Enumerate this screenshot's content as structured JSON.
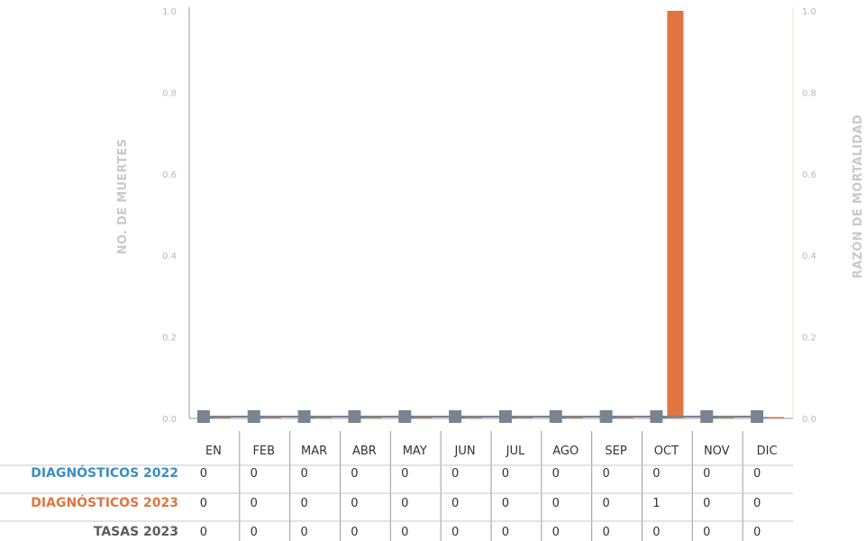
{
  "chart_data": {
    "type": "bar",
    "categories": [
      "EN",
      "FEB",
      "MAR",
      "ABR",
      "MAY",
      "JUN",
      "JUL",
      "AGO",
      "SEP",
      "OCT",
      "NOV",
      "DIC"
    ],
    "series": [
      {
        "name": "DIAGNÓSTICOS 2022",
        "kind": "bar",
        "axis": "left",
        "color": "#3a8fc0",
        "values": [
          0,
          0,
          0,
          0,
          0,
          0,
          0,
          0,
          0,
          0,
          0,
          0
        ]
      },
      {
        "name": "DIAGNÓSTICOS 2023",
        "kind": "bar",
        "axis": "left",
        "color": "#e07541",
        "values": [
          0,
          0,
          0,
          0,
          0,
          0,
          0,
          0,
          0,
          1,
          0,
          0
        ]
      },
      {
        "name": "TASAS 2023",
        "kind": "line-markers",
        "axis": "right",
        "color": "#7a8490",
        "values": [
          0,
          0,
          0,
          0,
          0,
          0,
          0,
          0,
          0,
          0,
          0,
          0
        ]
      }
    ],
    "ylabel": "NO. DE MUERTES",
    "y2label": "RAZÓN DE MORTALIDAD",
    "ylim": [
      0,
      1
    ],
    "y2lim": [
      0,
      1
    ],
    "yticks": [
      "0.0",
      "0.2",
      "0.4",
      "0.6",
      "0.8",
      "1.0"
    ],
    "y2ticks": [
      "0.0",
      "0.2",
      "0.4",
      "0.6",
      "0.8",
      "1.0"
    ],
    "grid": false,
    "legend": "data-table-below",
    "table": {
      "rows": [
        {
          "label": "DIAGNÓSTICOS 2022",
          "color": "#3a8fc0",
          "cells": [
            "0",
            "0",
            "0",
            "0",
            "0",
            "0",
            "0",
            "0",
            "0",
            "0",
            "0",
            "0"
          ]
        },
        {
          "label": "DIAGNÓSTICOS 2023",
          "color": "#e07541",
          "cells": [
            "0",
            "0",
            "0",
            "0",
            "0",
            "0",
            "0",
            "0",
            "0",
            "1",
            "0",
            "0"
          ]
        },
        {
          "label": "TASAS 2023",
          "color": "#5c5c5c",
          "cells": [
            "0",
            "0",
            "0",
            "0",
            "0",
            "0",
            "0",
            "0",
            "0",
            "0",
            "0",
            "0"
          ]
        }
      ]
    }
  }
}
